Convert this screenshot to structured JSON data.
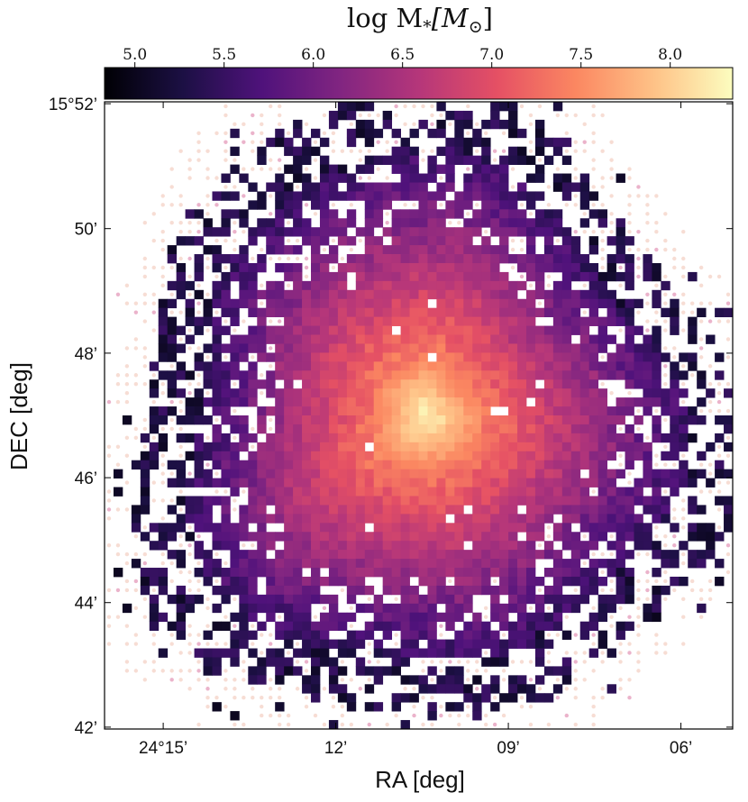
{
  "chart_data": {
    "type": "heatmap",
    "title": "",
    "colorbar": {
      "label_main": "log M",
      "label_sub": "*",
      "label_unit_open": "[M",
      "label_unit_sub": "⊙",
      "label_unit_close": "]",
      "range": [
        4.83,
        8.35
      ],
      "ticks": [
        5.0,
        5.5,
        6.0,
        6.5,
        7.0,
        7.5,
        8.0
      ],
      "tick_labels": [
        "5.0",
        "5.5",
        "6.0",
        "6.5",
        "7.0",
        "7.5",
        "8.0"
      ],
      "colormap": "magma",
      "stops": [
        "#000004",
        "#1c1044",
        "#4f127b",
        "#812581",
        "#b5367a",
        "#e55064",
        "#fb8761",
        "#fec287",
        "#fcfdbf"
      ],
      "orientation": "horizontal",
      "position": "top"
    },
    "x_axis": {
      "label": "RA [deg]",
      "range_deg": [
        24.267,
        24.085
      ],
      "ticks_deg": [
        24.25,
        24.2,
        24.15,
        24.1
      ],
      "tick_labels": [
        "24°15’",
        "12’",
        "09’",
        "06’"
      ],
      "inverted": true
    },
    "y_axis": {
      "label": "DEC [deg]",
      "range_deg": [
        15.6995,
        15.8672
      ],
      "ticks_deg": [
        15.7,
        15.7333,
        15.7667,
        15.8,
        15.8333,
        15.8667
      ],
      "tick_labels": [
        "42’",
        "44’",
        "46’",
        "48’",
        "50’",
        "15°52’"
      ]
    },
    "map": {
      "center_deg": [
        24.174,
        15.783
      ],
      "peak_log_mass": 8.3,
      "outskirts_log_mass": 5.3,
      "grid_cells": [
        70,
        70
      ],
      "pixel_scale_arcsec": 9.6,
      "faint_markers": "pale dots where stellar mass is low"
    }
  }
}
